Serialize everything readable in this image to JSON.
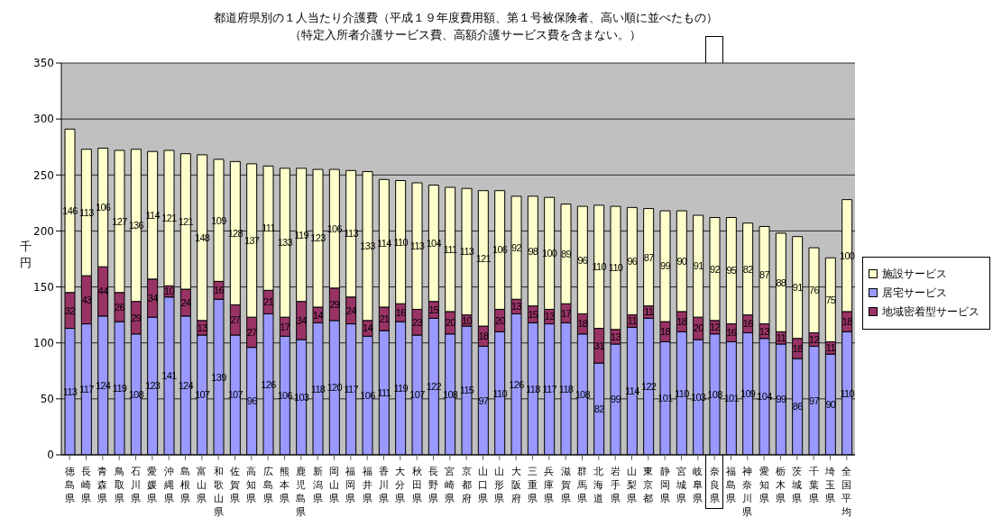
{
  "chart_data": {
    "type": "bar",
    "stacked": true,
    "title": "都道府県別の１人当たり介護費（平成１９年度費用額、第１号被保険者、高い順に並べたもの）",
    "subtitle": "（特定入所者介護サービス費、高額介護サービス費を含まない。）",
    "ylabel": "千円",
    "categories": [
      "徳島県",
      "長崎県",
      "青森県",
      "鳥取県",
      "石川県",
      "愛媛県",
      "沖縄県",
      "島根県",
      "富山県",
      "和歌山県",
      "佐賀県",
      "高知県",
      "広島県",
      "熊本県",
      "鹿児島県",
      "新潟県",
      "岡山県",
      "福岡県",
      "福井県",
      "香川県",
      "大分県",
      "秋田県",
      "長野県",
      "宮崎県",
      "京都府",
      "山口県",
      "山形県",
      "大阪府",
      "三重県",
      "兵庫県",
      "滋賀県",
      "群馬県",
      "北海道",
      "岩手県",
      "山梨県",
      "東京都",
      "静岡県",
      "宮城県",
      "岐阜県",
      "奈良県",
      "福島県",
      "神奈川県",
      "愛知県",
      "栃木県",
      "茨城県",
      "千葉県",
      "埼玉県",
      "全国平均"
    ],
    "series": [
      {
        "name": "居宅サービス",
        "color": "#9999ff",
        "values": [
          113,
          117,
          124,
          119,
          108,
          123,
          141,
          124,
          107,
          139,
          107,
          96,
          126,
          106,
          103,
          118,
          120,
          117,
          106,
          111,
          119,
          107,
          122,
          108,
          115,
          97,
          110,
          126,
          118,
          117,
          118,
          108,
          82,
          99,
          114,
          122,
          101,
          110,
          103,
          108,
          101,
          109,
          104,
          99,
          86,
          97,
          90,
          110
        ]
      },
      {
        "name": "地域密着型サービス",
        "color": "#993366",
        "values": [
          32,
          43,
          44,
          26,
          29,
          34,
          10,
          24,
          13,
          16,
          27,
          27,
          21,
          17,
          34,
          14,
          29,
          24,
          14,
          21,
          16,
          23,
          15,
          20,
          10,
          18,
          20,
          13,
          15,
          13,
          17,
          18,
          31,
          13,
          11,
          11,
          18,
          18,
          20,
          12,
          16,
          16,
          13,
          11,
          18,
          12,
          11,
          18
        ]
      },
      {
        "name": "施設サービス",
        "color": "#ffffcc",
        "values": [
          146,
          113,
          106,
          127,
          136,
          114,
          121,
          121,
          148,
          109,
          128,
          137,
          111,
          133,
          119,
          123,
          106,
          113,
          133,
          114,
          110,
          113,
          104,
          111,
          113,
          121,
          106,
          92,
          98,
          100,
          89,
          96,
          110,
          110,
          96,
          87,
          99,
          90,
          91,
          92,
          95,
          82,
          87,
          88,
          91,
          76,
          75,
          100
        ]
      }
    ],
    "ylim": [
      0,
      350
    ],
    "yticks": [
      0,
      50,
      100,
      150,
      200,
      250,
      300,
      350
    ],
    "grid": "y",
    "legend": "right",
    "data_labels": true
  }
}
